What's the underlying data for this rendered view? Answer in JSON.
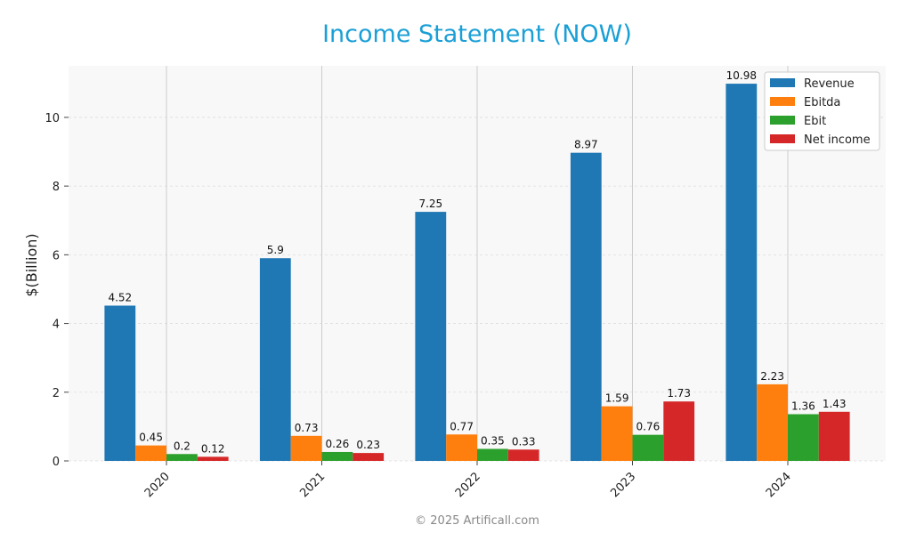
{
  "chart_data": {
    "type": "bar",
    "title": "Income Statement (NOW)",
    "xlabel": "",
    "ylabel": "$(Billion)",
    "categories": [
      "2020",
      "2021",
      "2022",
      "2023",
      "2024"
    ],
    "ylim": [
      0,
      11.5
    ],
    "yticks": [
      "0",
      "2",
      "4",
      "6",
      "8",
      "10"
    ],
    "grid": true,
    "legend_position": "top-right",
    "series": [
      {
        "name": "Revenue",
        "color": "#1f77b4",
        "values": [
          4.52,
          5.9,
          7.25,
          8.97,
          10.98
        ],
        "labels": [
          "4.52",
          "5.9",
          "7.25",
          "8.97",
          "10.98"
        ]
      },
      {
        "name": "Ebitda",
        "color": "#ff7f0e",
        "values": [
          0.45,
          0.73,
          0.77,
          1.59,
          2.23
        ],
        "labels": [
          "0.45",
          "0.73",
          "0.77",
          "1.59",
          "2.23"
        ]
      },
      {
        "name": "Ebit",
        "color": "#2ca02c",
        "values": [
          0.2,
          0.26,
          0.35,
          0.76,
          1.36
        ],
        "labels": [
          "0.2",
          "0.26",
          "0.35",
          "0.76",
          "1.36"
        ]
      },
      {
        "name": "Net income",
        "color": "#d62728",
        "values": [
          0.12,
          0.23,
          0.33,
          1.73,
          1.43
        ],
        "labels": [
          "0.12",
          "0.23",
          "0.33",
          "1.73",
          "1.43"
        ]
      }
    ]
  },
  "footer": "© 2025 Artificall.com"
}
